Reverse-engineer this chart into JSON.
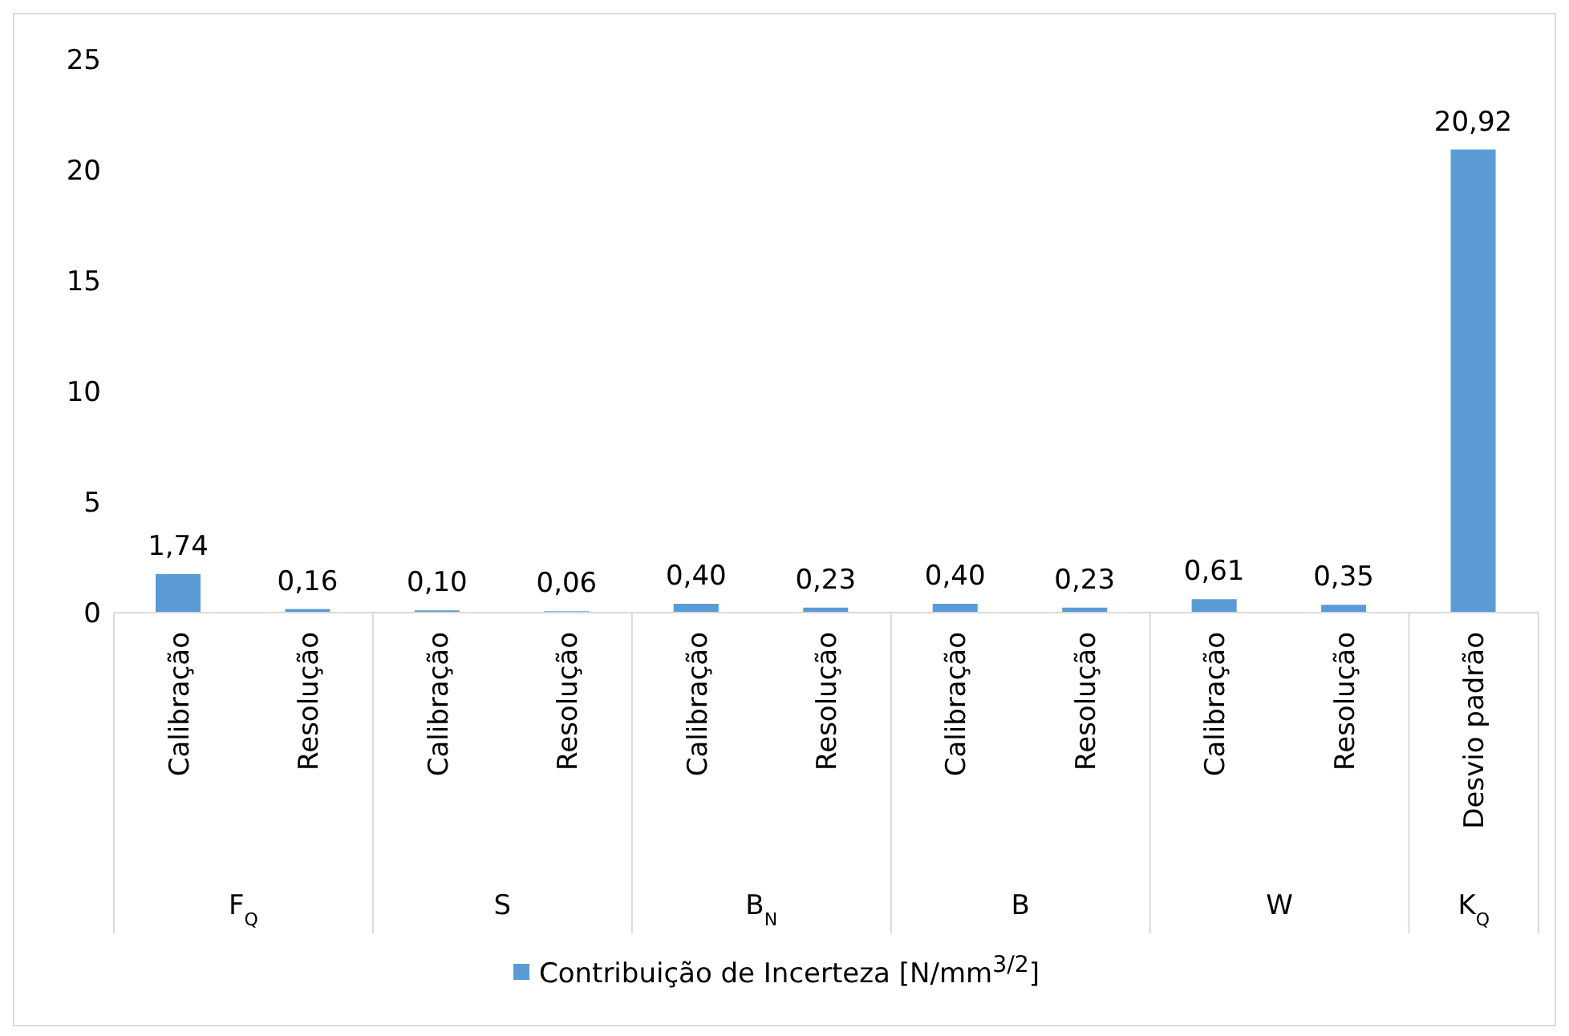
{
  "chart_data": {
    "type": "bar",
    "categories": [
      "Calibração",
      "Resolução",
      "Calibração",
      "Resolução",
      "Calibração",
      "Resolução",
      "Calibração",
      "Resolução",
      "Calibração",
      "Resolução",
      "Desvio padrão"
    ],
    "series": [
      {
        "name": "Contribuição de Incerteza [N/mm$^{3/2}$]",
        "color": "#5b9bd5",
        "values": [
          1.74,
          0.16,
          0.1,
          0.06,
          0.4,
          0.23,
          0.4,
          0.23,
          0.61,
          0.35,
          20.92
        ],
        "value_labels": [
          "1,74",
          "0,16",
          "0,10",
          "0,06",
          "0,40",
          "0,23",
          "0,40",
          "0,23",
          "0,61",
          "0,35",
          "20,92"
        ]
      }
    ],
    "annotations": [
      "F$_{Q}$",
      "S",
      "B$_{N}$",
      "B",
      "W",
      "K$_{Q}$"
    ],
    "ylim": [
      0,
      25
    ],
    "yticks": [
      0,
      5,
      10,
      15,
      20,
      25
    ],
    "grid": false,
    "legend": "bottom"
  }
}
